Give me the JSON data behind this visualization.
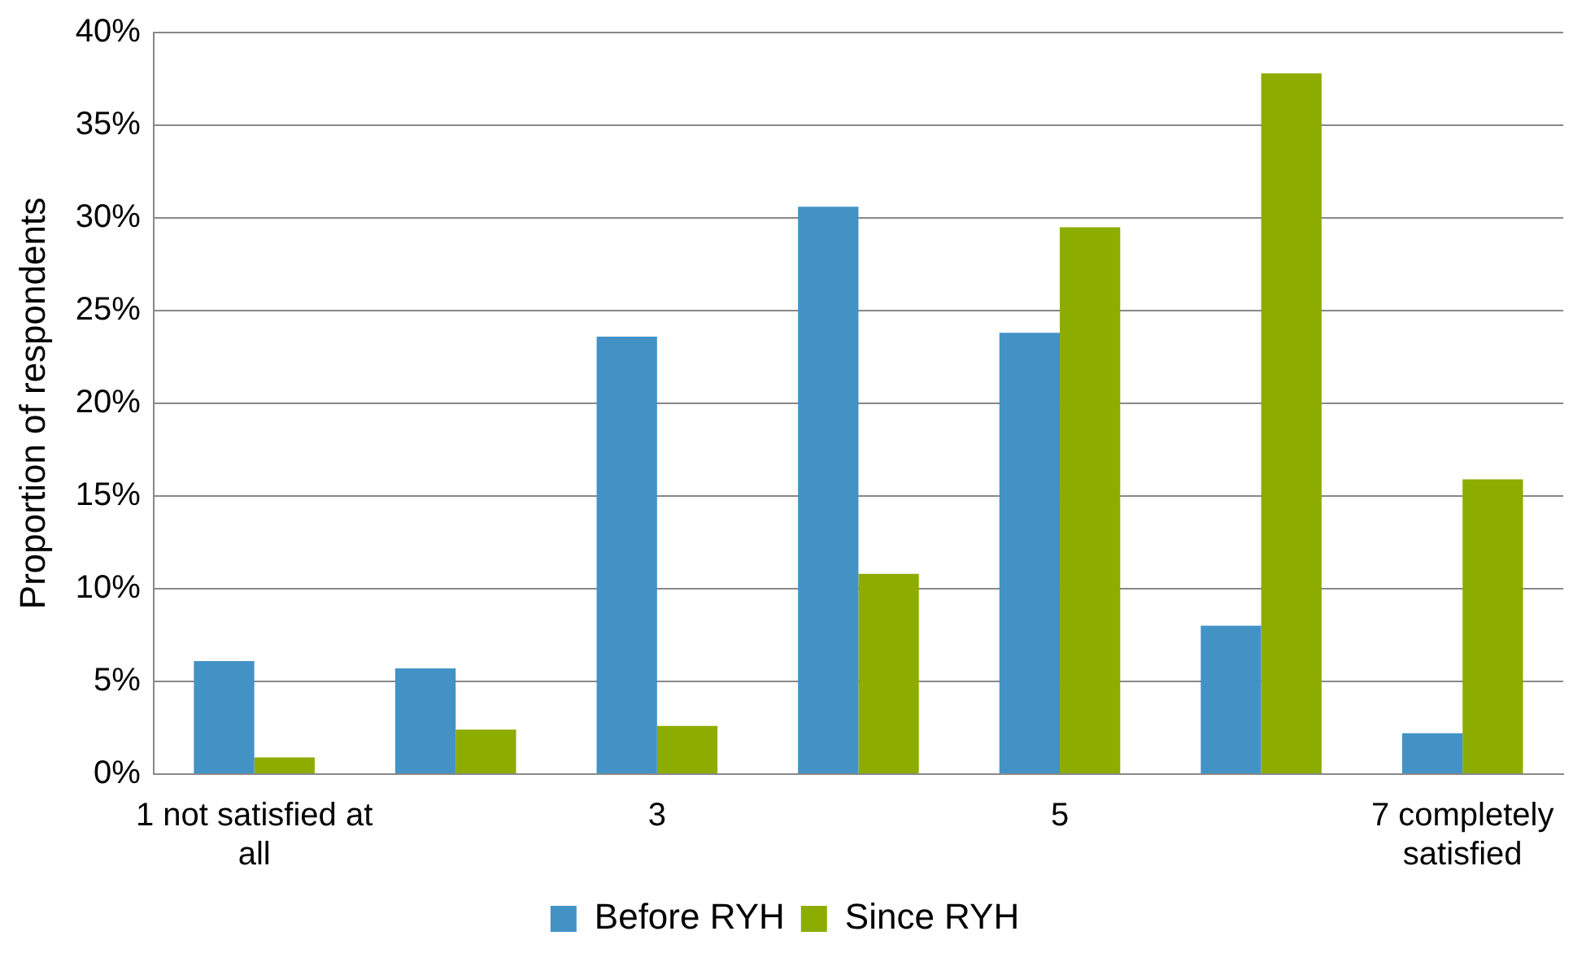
{
  "chart_data": {
    "type": "bar",
    "ylabel": "Proportion of respondents",
    "categories": [
      "1 not satisfied at all",
      null,
      "3",
      null,
      "5",
      null,
      "7 completely satisfied"
    ],
    "series": [
      {
        "name": "Before RYH",
        "color": "#4292c6",
        "values": [
          6.1,
          5.7,
          23.6,
          30.6,
          23.8,
          8.0,
          2.2
        ]
      },
      {
        "name": "Since RYH",
        "color": "#8cac00",
        "values": [
          0.9,
          2.4,
          2.6,
          10.8,
          29.5,
          37.8,
          15.9
        ]
      }
    ],
    "ylim": [
      0,
      40
    ],
    "yticks": [
      {
        "value": 0,
        "label": "0%"
      },
      {
        "value": 5,
        "label": "5%"
      },
      {
        "value": 10,
        "label": "10%"
      },
      {
        "value": 15,
        "label": "15%"
      },
      {
        "value": 20,
        "label": "20%"
      },
      {
        "value": 25,
        "label": "25%"
      },
      {
        "value": 30,
        "label": "30%"
      },
      {
        "value": 35,
        "label": "35%"
      },
      {
        "value": 40,
        "label": "40%"
      }
    ],
    "grid": "y",
    "legend": "bottom"
  }
}
